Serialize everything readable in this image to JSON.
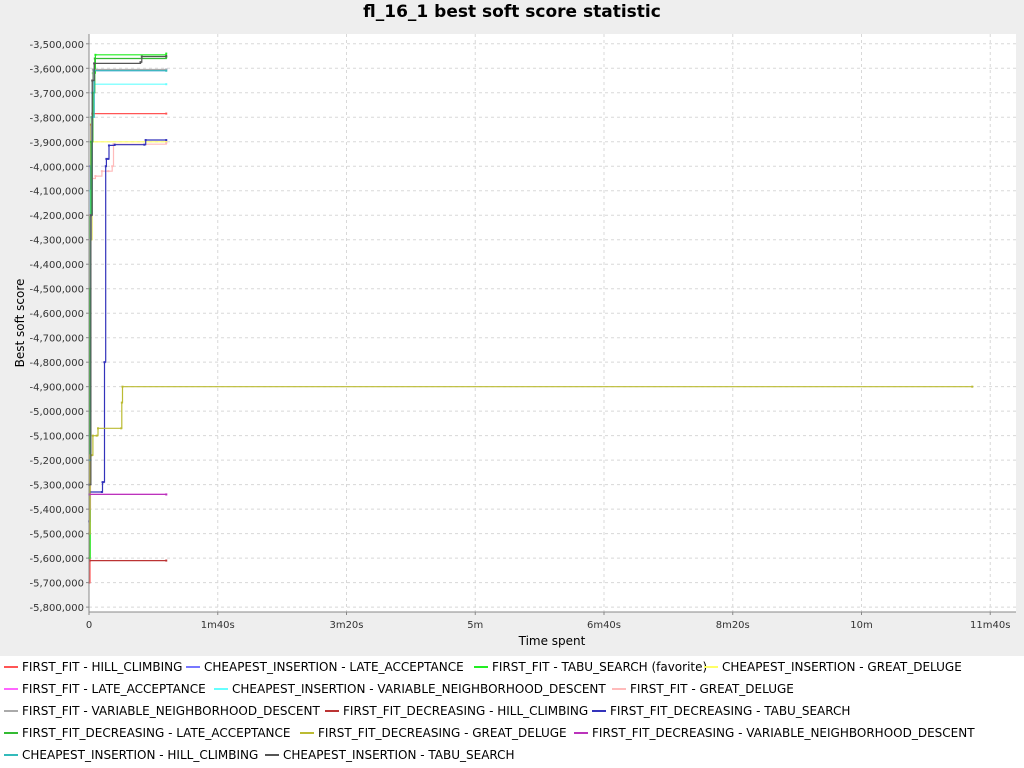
{
  "chart_data": {
    "type": "line",
    "title": "fl_16_1 best soft score statistic",
    "xlabel": "Time spent",
    "ylabel": "Best soft score",
    "xlim": [
      0,
      720
    ],
    "ylim": [
      -5820000,
      -3460000
    ],
    "x_ticks": [
      {
        "value": 0,
        "label": "0"
      },
      {
        "value": 100,
        "label": "1m40s"
      },
      {
        "value": 200,
        "label": "3m20s"
      },
      {
        "value": 300,
        "label": "5m"
      },
      {
        "value": 400,
        "label": "6m40s"
      },
      {
        "value": 500,
        "label": "8m20s"
      },
      {
        "value": 600,
        "label": "10m"
      },
      {
        "value": 700,
        "label": "11m40s"
      }
    ],
    "y_ticks": [
      {
        "value": -3500000,
        "label": "-3,500,000"
      },
      {
        "value": -3600000,
        "label": "-3,600,000"
      },
      {
        "value": -3700000,
        "label": "-3,700,000"
      },
      {
        "value": -3800000,
        "label": "-3,800,000"
      },
      {
        "value": -3900000,
        "label": "-3,900,000"
      },
      {
        "value": -4000000,
        "label": "-4,000,000"
      },
      {
        "value": -4100000,
        "label": "-4,100,000"
      },
      {
        "value": -4200000,
        "label": "-4,200,000"
      },
      {
        "value": -4300000,
        "label": "-4,300,000"
      },
      {
        "value": -4400000,
        "label": "-4,400,000"
      },
      {
        "value": -4500000,
        "label": "-4,500,000"
      },
      {
        "value": -4600000,
        "label": "-4,600,000"
      },
      {
        "value": -4700000,
        "label": "-4,700,000"
      },
      {
        "value": -4800000,
        "label": "-4,800,000"
      },
      {
        "value": -4900000,
        "label": "-4,900,000"
      },
      {
        "value": -5000000,
        "label": "-5,000,000"
      },
      {
        "value": -5100000,
        "label": "-5,100,000"
      },
      {
        "value": -5200000,
        "label": "-5,200,000"
      },
      {
        "value": -5300000,
        "label": "-5,300,000"
      },
      {
        "value": -5400000,
        "label": "-5,400,000"
      },
      {
        "value": -5500000,
        "label": "-5,500,000"
      },
      {
        "value": -5600000,
        "label": "-5,600,000"
      },
      {
        "value": -5700000,
        "label": "-5,700,000"
      },
      {
        "value": -5800000,
        "label": "-5,800,000"
      }
    ],
    "grid": true,
    "legend_position": "bottom",
    "series": [
      {
        "name": "FIRST_FIT - HILL_CLIMBING",
        "color": "#ff5555",
        "points": [
          [
            0.2,
            -5700000
          ],
          [
            0.8,
            -4200000
          ],
          [
            1.5,
            -3830000
          ],
          [
            2.5,
            -3785000
          ],
          [
            60,
            -3785000
          ]
        ]
      },
      {
        "name": "CHEAPEST_INSERTION - LATE_ACCEPTANCE",
        "color": "#7777ff",
        "points": [
          [
            0.3,
            -5300000
          ],
          [
            1.2,
            -4000000
          ],
          [
            2.5,
            -3700000
          ],
          [
            4,
            -3610000
          ],
          [
            60,
            -3605000
          ]
        ]
      },
      {
        "name": "FIRST_FIT - TABU_SEARCH (favorite)",
        "color": "#22ee22",
        "points": [
          [
            0.2,
            -5600000
          ],
          [
            0.9,
            -4200000
          ],
          [
            1.8,
            -3800000
          ],
          [
            3,
            -3620000
          ],
          [
            5,
            -3545000
          ],
          [
            60,
            -3540000
          ]
        ]
      },
      {
        "name": "CHEAPEST_INSERTION - GREAT_DELUGE",
        "color": "#ffff66",
        "points": [
          [
            0.3,
            -5200000
          ],
          [
            1.5,
            -4300000
          ],
          [
            2.5,
            -3900000
          ],
          [
            60,
            -3900000
          ]
        ]
      },
      {
        "name": "FIRST_FIT - LATE_ACCEPTANCE",
        "color": "#ff66ff",
        "points": [
          [
            0.3,
            -5340000
          ],
          [
            60,
            -5340000
          ]
        ]
      },
      {
        "name": "CHEAPEST_INSERTION - VARIABLE_NEIGHBORHOOD_DESCENT",
        "color": "#66ffff",
        "points": [
          [
            0.2,
            -5100000
          ],
          [
            1.2,
            -4100000
          ],
          [
            2.5,
            -3700000
          ],
          [
            4,
            -3665000
          ],
          [
            60,
            -3665000
          ]
        ]
      },
      {
        "name": "FIRST_FIT - GREAT_DELUGE",
        "color": "#ffbbbb",
        "points": [
          [
            0.2,
            -5400000
          ],
          [
            1.2,
            -4200000
          ],
          [
            2,
            -4050000
          ],
          [
            5,
            -4040000
          ],
          [
            10,
            -4020000
          ],
          [
            15,
            -4020000
          ],
          [
            18,
            -4000000
          ],
          [
            19,
            -3910000
          ],
          [
            60,
            -3905000
          ]
        ]
      },
      {
        "name": "FIRST_FIT - VARIABLE_NEIGHBORHOOD_DESCENT",
        "color": "#aaaaaa",
        "points": [
          [
            0.2,
            -5300000
          ],
          [
            1,
            -4300000
          ],
          [
            2,
            -3800000
          ],
          [
            3,
            -3605000
          ],
          [
            60,
            -3605000
          ]
        ]
      },
      {
        "name": "FIRST_FIT_DECREASING - HILL_CLIMBING",
        "color": "#bb3333",
        "points": [
          [
            0.5,
            -5610000
          ],
          [
            60,
            -5610000
          ]
        ]
      },
      {
        "name": "FIRST_FIT_DECREASING - TABU_SEARCH",
        "color": "#3333bb",
        "points": [
          [
            0.2,
            -5450000
          ],
          [
            0.8,
            -5330000
          ],
          [
            10,
            -5330000
          ],
          [
            10.5,
            -5290000
          ],
          [
            11,
            -5290000
          ],
          [
            12,
            -4800000
          ],
          [
            13,
            -4000000
          ],
          [
            13.5,
            -3970000
          ],
          [
            15,
            -3970000
          ],
          [
            15.5,
            -3915000
          ],
          [
            20,
            -3912000
          ],
          [
            43,
            -3912000
          ],
          [
            44,
            -3893000
          ],
          [
            60,
            -3893000
          ]
        ]
      },
      {
        "name": "FIRST_FIT_DECREASING - LATE_ACCEPTANCE",
        "color": "#33bb33",
        "points": [
          [
            0.2,
            -5500000
          ],
          [
            0.8,
            -4500000
          ],
          [
            1.5,
            -3900000
          ],
          [
            3,
            -3700000
          ],
          [
            4.5,
            -3560000
          ],
          [
            60,
            -3555000
          ]
        ]
      },
      {
        "name": "FIRST_FIT_DECREASING - GREAT_DELUGE",
        "color": "#bbbb33",
        "points": [
          [
            0.2,
            -5500000
          ],
          [
            0.8,
            -5180000
          ],
          [
            2,
            -5180000
          ],
          [
            3,
            -5100000
          ],
          [
            6,
            -5100000
          ],
          [
            7,
            -5070000
          ],
          [
            25,
            -5070000
          ],
          [
            25.5,
            -4965000
          ],
          [
            26,
            -4900000
          ],
          [
            686,
            -4900000
          ]
        ]
      },
      {
        "name": "FIRST_FIT_DECREASING - VARIABLE_NEIGHBORHOOD_DESCENT",
        "color": "#bb33bb",
        "points": [
          [
            0.3,
            -5340000
          ],
          [
            60,
            -5340000
          ]
        ]
      },
      {
        "name": "CHEAPEST_INSERTION - HILL_CLIMBING",
        "color": "#33bbbb",
        "points": [
          [
            0.3,
            -5200000
          ],
          [
            1.5,
            -4200000
          ],
          [
            2.5,
            -3800000
          ],
          [
            4,
            -3610000
          ],
          [
            60,
            -3610000
          ]
        ]
      },
      {
        "name": "CHEAPEST_INSERTION - TABU_SEARCH",
        "color": "#555555",
        "points": [
          [
            0.2,
            -5300000
          ],
          [
            1.5,
            -4200000
          ],
          [
            2.5,
            -3650000
          ],
          [
            4,
            -3580000
          ],
          [
            40,
            -3575000
          ],
          [
            41,
            -3552000
          ],
          [
            60,
            -3550000
          ]
        ]
      }
    ]
  },
  "legend": [
    {
      "label": "FIRST_FIT - HILL_CLIMBING",
      "color": "#ff5555"
    },
    {
      "label": "CHEAPEST_INSERTION - LATE_ACCEPTANCE",
      "color": "#7777ff"
    },
    {
      "label": "FIRST_FIT - TABU_SEARCH (favorite)",
      "color": "#22ee22"
    },
    {
      "label": "CHEAPEST_INSERTION - GREAT_DELUGE",
      "color": "#ffff66"
    },
    {
      "label": "FIRST_FIT - LATE_ACCEPTANCE",
      "color": "#ff66ff"
    },
    {
      "label": "CHEAPEST_INSERTION - VARIABLE_NEIGHBORHOOD_DESCENT",
      "color": "#66ffff"
    },
    {
      "label": "FIRST_FIT - GREAT_DELUGE",
      "color": "#ffbbbb"
    },
    {
      "label": "FIRST_FIT - VARIABLE_NEIGHBORHOOD_DESCENT",
      "color": "#aaaaaa"
    },
    {
      "label": "FIRST_FIT_DECREASING - HILL_CLIMBING",
      "color": "#bb3333"
    },
    {
      "label": "FIRST_FIT_DECREASING - TABU_SEARCH",
      "color": "#3333bb"
    },
    {
      "label": "FIRST_FIT_DECREASING - LATE_ACCEPTANCE",
      "color": "#33bb33"
    },
    {
      "label": "FIRST_FIT_DECREASING - GREAT_DELUGE",
      "color": "#bbbb33"
    },
    {
      "label": "FIRST_FIT_DECREASING - VARIABLE_NEIGHBORHOOD_DESCENT",
      "color": "#bb33bb"
    },
    {
      "label": "CHEAPEST_INSERTION - HILL_CLIMBING",
      "color": "#33bbbb"
    },
    {
      "label": "CHEAPEST_INSERTION - TABU_SEARCH",
      "color": "#555555"
    }
  ]
}
